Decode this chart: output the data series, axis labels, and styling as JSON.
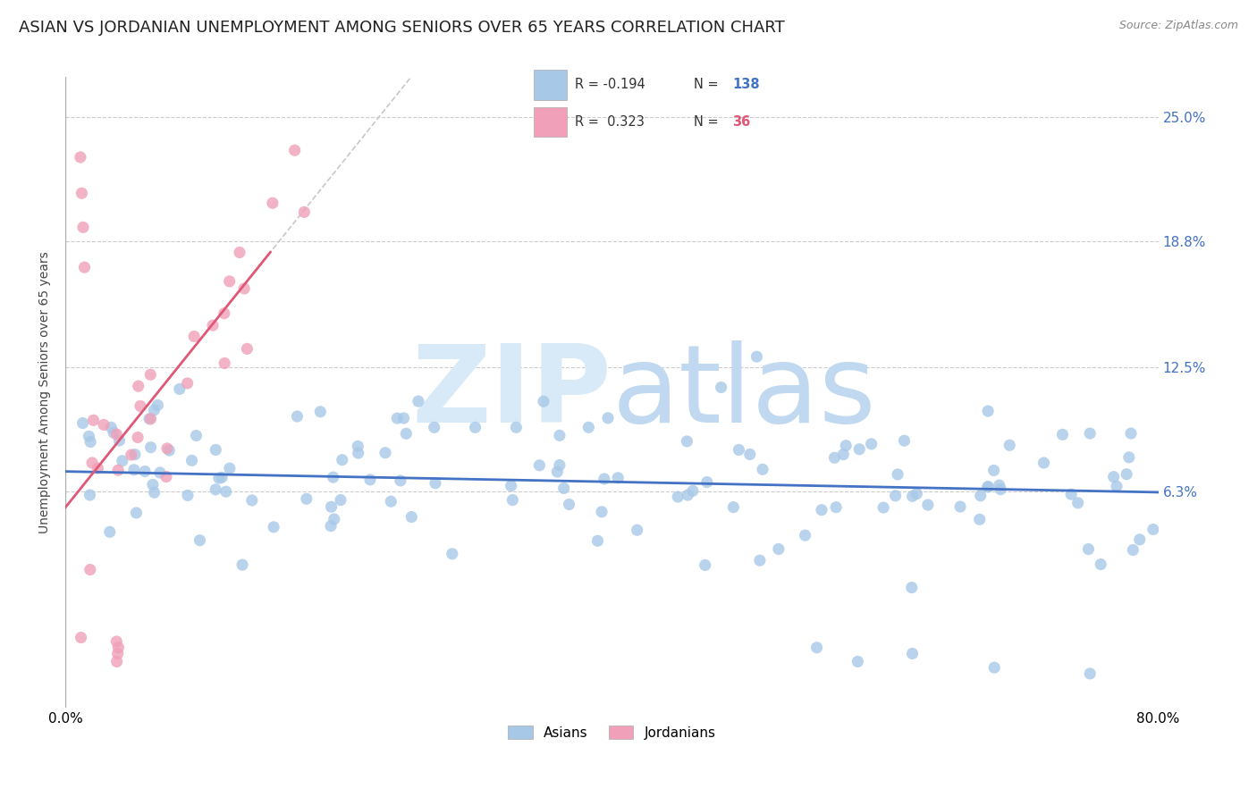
{
  "title": "ASIAN VS JORDANIAN UNEMPLOYMENT AMONG SENIORS OVER 65 YEARS CORRELATION CHART",
  "source": "Source: ZipAtlas.com",
  "ylabel": "Unemployment Among Seniors over 65 years",
  "ytick_labels": [
    "25.0%",
    "18.8%",
    "12.5%",
    "6.3%"
  ],
  "ytick_values": [
    0.25,
    0.188,
    0.125,
    0.063
  ],
  "xlim": [
    0.0,
    0.8
  ],
  "ylim": [
    -0.045,
    0.27
  ],
  "asian_R": -0.194,
  "asian_N": 138,
  "jordanian_R": 0.323,
  "jordanian_N": 36,
  "asian_color": "#a8c8e8",
  "asian_line_color": "#4472c4",
  "jordanian_color": "#f0a0b8",
  "jordanian_line_color": "#e05878",
  "background_color": "#ffffff",
  "watermark_color": "#d8eaf8",
  "title_fontsize": 13,
  "axis_label_fontsize": 10,
  "tick_label_fontsize": 11,
  "source_fontsize": 9
}
